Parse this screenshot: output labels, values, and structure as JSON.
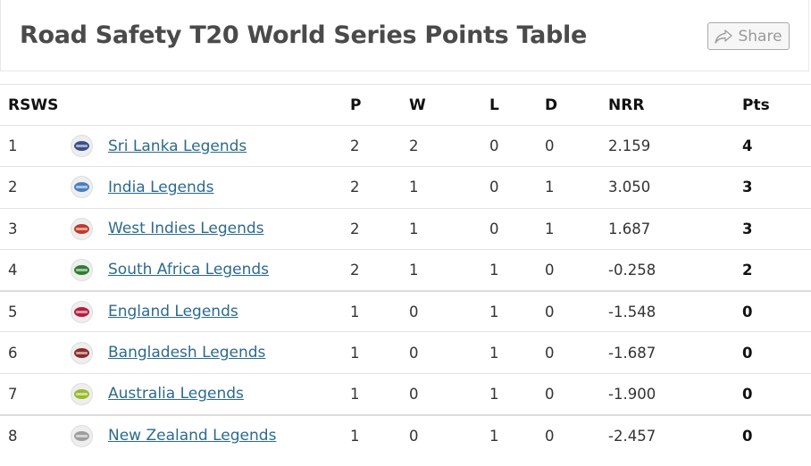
{
  "header": {
    "title": "Road Safety T20 World Series Points Table",
    "share_label": "Share",
    "share_icon": "share-arrow-icon"
  },
  "table": {
    "columns": {
      "rank": "RSWS",
      "played": "P",
      "won": "W",
      "lost": "L",
      "drawn": "D",
      "nrr": "NRR",
      "points": "Pts"
    },
    "rows": [
      {
        "rank": "1",
        "team": "Sri Lanka Legends",
        "logo_color": "#3a4f8a",
        "p": "2",
        "w": "2",
        "l": "0",
        "d": "0",
        "nrr": "2.159",
        "pts": "4"
      },
      {
        "rank": "2",
        "team": "India Legends",
        "logo_color": "#4a7fc0",
        "p": "2",
        "w": "1",
        "l": "0",
        "d": "1",
        "nrr": "3.050",
        "pts": "3"
      },
      {
        "rank": "3",
        "team": "West Indies Legends",
        "logo_color": "#c0392b",
        "p": "2",
        "w": "1",
        "l": "0",
        "d": "1",
        "nrr": "1.687",
        "pts": "3"
      },
      {
        "rank": "4",
        "team": "South Africa Legends",
        "logo_color": "#2e7d32",
        "p": "2",
        "w": "1",
        "l": "1",
        "d": "0",
        "nrr": "-0.258",
        "pts": "2"
      },
      {
        "rank": "5",
        "team": "England Legends",
        "logo_color": "#b71c3c",
        "p": "1",
        "w": "0",
        "l": "1",
        "d": "0",
        "nrr": "-1.548",
        "pts": "0"
      },
      {
        "rank": "6",
        "team": "Bangladesh Legends",
        "logo_color": "#8e2a2a",
        "p": "1",
        "w": "0",
        "l": "1",
        "d": "0",
        "nrr": "-1.687",
        "pts": "0"
      },
      {
        "rank": "7",
        "team": "Australia Legends",
        "logo_color": "#9ab82a",
        "p": "1",
        "w": "0",
        "l": "1",
        "d": "0",
        "nrr": "-1.900",
        "pts": "0"
      },
      {
        "rank": "8",
        "team": "New Zealand Legends",
        "logo_color": "#9e9e9e",
        "p": "1",
        "w": "0",
        "l": "1",
        "d": "0",
        "nrr": "-2.457",
        "pts": "0"
      }
    ]
  }
}
